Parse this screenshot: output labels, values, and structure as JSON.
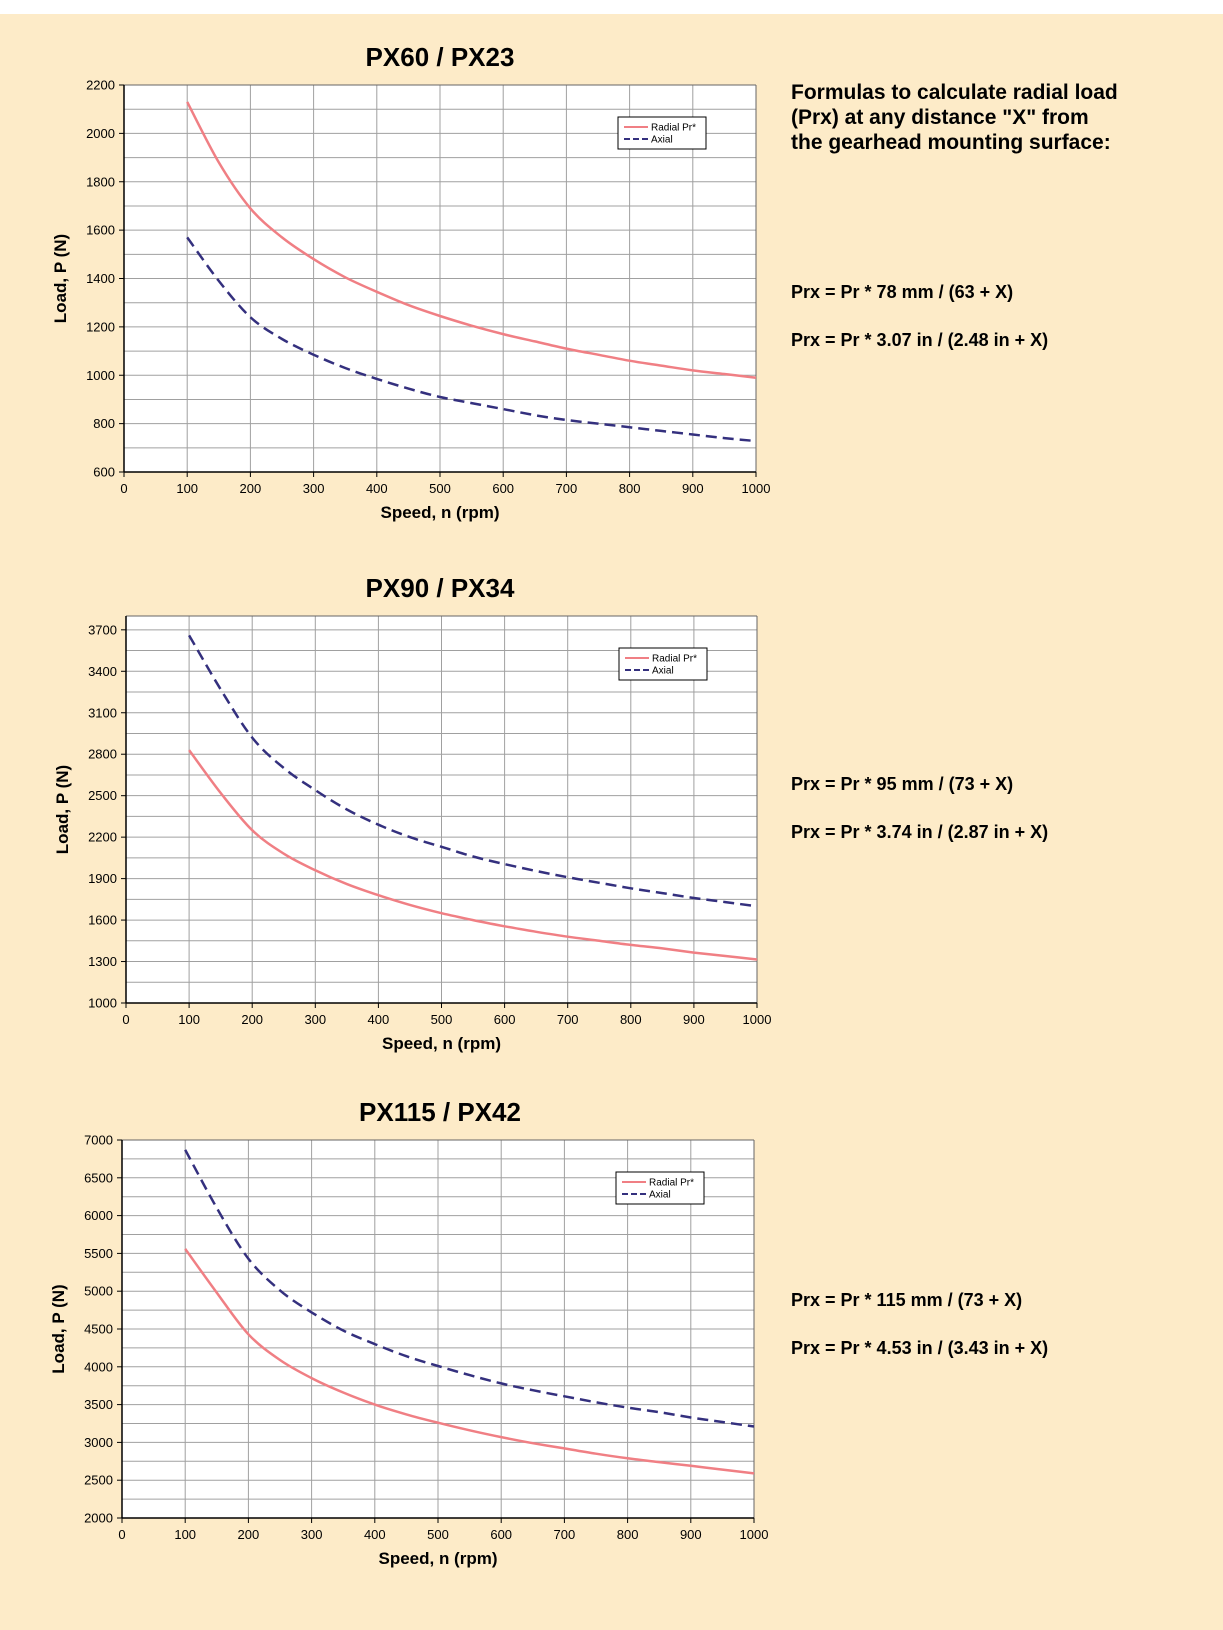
{
  "page": {
    "top_strip_text": "",
    "intro": "Formulas to calculate radial load\n(Prx) at any distance \"X\" from\nthe gearhead mounting surface:",
    "background": "#fdebc8"
  },
  "colors": {
    "radial": "#f07f84",
    "axial": "#34307e",
    "grid": "#a0a0a0"
  },
  "sections": [
    {
      "formula_mm": "Prx = Pr * 78 mm / (63 + X)",
      "formula_in": "Prx = Pr * 3.07 in / (2.48 in + X)"
    },
    {
      "formula_mm": "Prx = Pr * 95 mm / (73 + X)",
      "formula_in": "Prx = Pr * 3.74 in / (2.87 in + X)"
    },
    {
      "formula_mm": "Prx = Pr * 115 mm / (73 + X)",
      "formula_in": "Prx = Pr * 4.53 in / (3.43 in + X)"
    }
  ],
  "chart_data": [
    {
      "type": "line",
      "title": "PX60 / PX23",
      "xlabel": "Speed, n (rpm)",
      "ylabel": "Load, P (N)",
      "xlim": [
        0,
        1000
      ],
      "ylim": [
        600,
        2200
      ],
      "xticks": [
        0,
        100,
        200,
        300,
        400,
        500,
        600,
        700,
        800,
        900,
        1000
      ],
      "yticks": [
        600,
        800,
        1000,
        1200,
        1400,
        1600,
        1800,
        2000,
        2200
      ],
      "legend_position": "top-right",
      "x": [
        100,
        150,
        200,
        250,
        300,
        350,
        400,
        450,
        500,
        550,
        600,
        650,
        700,
        750,
        800,
        850,
        900,
        950,
        1000
      ],
      "series": [
        {
          "name": "Radial Pr*",
          "style": "solid",
          "values": [
            2130,
            1880,
            1690,
            1570,
            1480,
            1405,
            1345,
            1290,
            1245,
            1205,
            1170,
            1140,
            1110,
            1085,
            1060,
            1040,
            1020,
            1005,
            990
          ]
        },
        {
          "name": "Axial",
          "style": "dashed",
          "values": [
            1570,
            1390,
            1240,
            1150,
            1085,
            1030,
            985,
            945,
            910,
            885,
            860,
            835,
            815,
            800,
            785,
            770,
            755,
            740,
            728
          ]
        }
      ]
    },
    {
      "type": "line",
      "title": "PX90 / PX34",
      "xlabel": "Speed, n (rpm)",
      "ylabel": "Load, P (N)",
      "xlim": [
        0,
        1000
      ],
      "ylim": [
        1000,
        3800
      ],
      "xticks": [
        0,
        100,
        200,
        300,
        400,
        500,
        600,
        700,
        800,
        900,
        1000
      ],
      "yticks": [
        1000,
        1300,
        1600,
        1900,
        2200,
        2500,
        2800,
        3100,
        3400,
        3700
      ],
      "legend_position": "top-right",
      "x": [
        100,
        150,
        200,
        250,
        300,
        350,
        400,
        450,
        500,
        550,
        600,
        650,
        700,
        750,
        800,
        850,
        900,
        950,
        1000
      ],
      "series": [
        {
          "name": "Radial Pr*",
          "style": "solid",
          "values": [
            2830,
            2520,
            2250,
            2080,
            1960,
            1860,
            1780,
            1710,
            1650,
            1600,
            1555,
            1515,
            1480,
            1450,
            1420,
            1395,
            1365,
            1340,
            1315
          ]
        },
        {
          "name": "Axial",
          "style": "dashed",
          "values": [
            3660,
            3270,
            2920,
            2700,
            2540,
            2400,
            2290,
            2200,
            2130,
            2060,
            2005,
            1955,
            1910,
            1870,
            1830,
            1795,
            1760,
            1730,
            1700
          ]
        }
      ]
    },
    {
      "type": "line",
      "title": "PX115 / PX42",
      "xlabel": "Speed, n (rpm)",
      "ylabel": "Load, P (N)",
      "xlim": [
        0,
        1000
      ],
      "ylim": [
        2000,
        7000
      ],
      "xticks": [
        0,
        100,
        200,
        300,
        400,
        500,
        600,
        700,
        800,
        900,
        1000
      ],
      "yticks": [
        2000,
        2500,
        3000,
        3500,
        4000,
        4500,
        5000,
        5500,
        6000,
        6500,
        7000
      ],
      "legend_position": "top-right",
      "x": [
        100,
        150,
        200,
        250,
        300,
        350,
        400,
        450,
        500,
        550,
        600,
        650,
        700,
        750,
        800,
        850,
        900,
        950,
        1000
      ],
      "series": [
        {
          "name": "Radial Pr*",
          "style": "solid",
          "values": [
            5560,
            4980,
            4430,
            4090,
            3850,
            3660,
            3500,
            3370,
            3260,
            3160,
            3070,
            2990,
            2920,
            2850,
            2790,
            2740,
            2690,
            2640,
            2590
          ]
        },
        {
          "name": "Axial",
          "style": "dashed",
          "values": [
            6870,
            6100,
            5430,
            5010,
            4720,
            4480,
            4300,
            4140,
            4010,
            3890,
            3780,
            3690,
            3610,
            3530,
            3460,
            3400,
            3330,
            3270,
            3210
          ]
        }
      ]
    }
  ]
}
